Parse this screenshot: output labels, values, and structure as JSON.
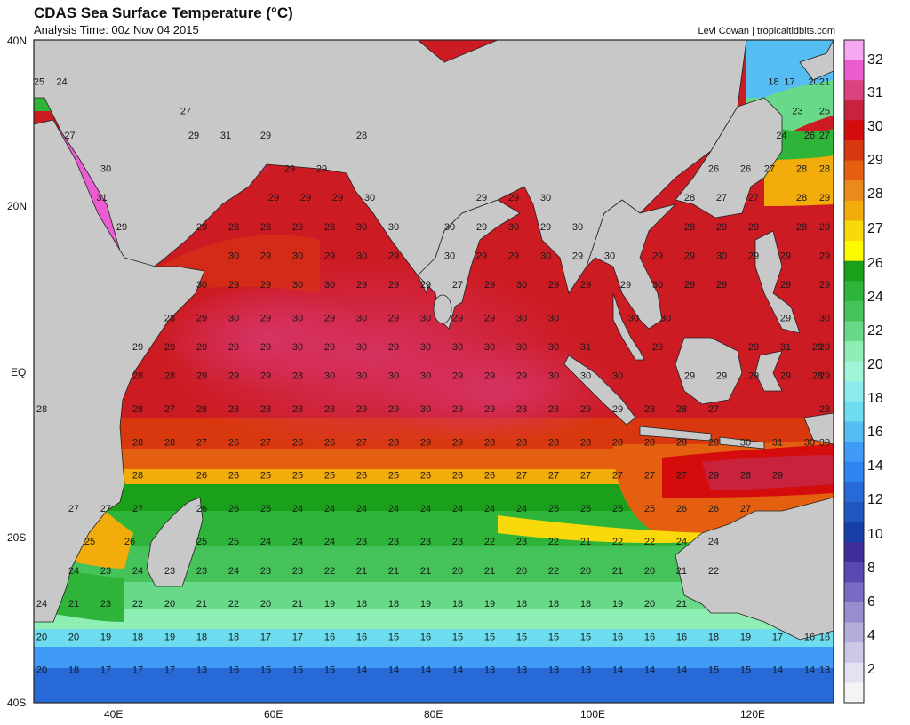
{
  "header": {
    "title": "CDAS Sea Surface Temperature (°C)",
    "analysis_time": "Analysis Time: 00z Nov 04 2015",
    "credit": "Levi Cowan | tropicaltidbits.com"
  },
  "axes": {
    "lat_labels": [
      "40N",
      "20N",
      "EQ",
      "20S",
      "40S"
    ],
    "lon_labels": [
      "40E",
      "60E",
      "80E",
      "100E",
      "120E"
    ]
  },
  "colorbar": {
    "labels": [
      "32",
      "31",
      "30",
      "29",
      "28",
      "27",
      "26",
      "24",
      "22",
      "20",
      "18",
      "16",
      "14",
      "12",
      "10",
      "8",
      "6",
      "4",
      "2"
    ],
    "colors": [
      "#f7a8f2",
      "#ea5ccf",
      "#d9427c",
      "#c8223c",
      "#d40c0c",
      "#d9380e",
      "#e45f10",
      "#eb8a1a",
      "#f2ad0c",
      "#f9d90a",
      "#fdf900",
      "#1aa01a",
      "#2fb43a",
      "#45c25a",
      "#68d988",
      "#8feeb4",
      "#9ff5d6",
      "#8cecec",
      "#6ddcef",
      "#56bdf2",
      "#3f9bf5",
      "#2f84ef",
      "#2769d6",
      "#1f56c0",
      "#173fa8",
      "#3d2e9a",
      "#5948b0",
      "#7a6cc5",
      "#978ed0",
      "#b3addb",
      "#ccc8e6",
      "#e4e1f2",
      "#f4f4f4"
    ]
  },
  "land_color": "#c8c8c8",
  "temp_grid": [
    {
      "lat": 35,
      "values": {
        "30": "25",
        "33.5": "24",
        "122.5": "18",
        "124.5": "17",
        "127.5": "20",
        "130": "21"
      }
    },
    {
      "lat": 31.5,
      "values": {
        "49": "27",
        "125.5": "23",
        "129.5": "25"
      }
    },
    {
      "lat": 28.5,
      "values": {
        "34.5": "27",
        "50": "29",
        "54": "31",
        "59": "29",
        "71": "28",
        "123.5": "24",
        "127": "26",
        "130": "27"
      }
    },
    {
      "lat": 24.5,
      "values": {
        "39": "30",
        "62": "29",
        "66": "29",
        "115": "26",
        "119": "26",
        "122": "27",
        "126": "28",
        "130": "28"
      }
    },
    {
      "lat": 21,
      "values": {
        "38.5": "31",
        "60": "29",
        "64": "29",
        "68": "29",
        "72": "30",
        "86": "29",
        "90": "29",
        "94": "30",
        "112": "28",
        "116": "27",
        "120": "27",
        "126": "28",
        "130": "29"
      }
    },
    {
      "lat": 17.5,
      "values": {
        "41": "29",
        "51": "29",
        "55": "28",
        "59": "28",
        "63": "29",
        "67": "28",
        "71": "30",
        "75": "30",
        "82": "30",
        "86": "29",
        "90": "30",
        "94": "29",
        "98": "30",
        "112": "28",
        "116": "29",
        "120": "29",
        "126": "28",
        "130": "29"
      }
    },
    {
      "lat": 14,
      "values": {
        "55": "30",
        "59": "29",
        "63": "30",
        "67": "29",
        "71": "30",
        "75": "29",
        "82": "30",
        "86": "29",
        "90": "29",
        "94": "30",
        "98": "29",
        "102": "30",
        "108": "29",
        "112": "29",
        "116": "30",
        "120": "29",
        "124": "29",
        "130": "29"
      }
    },
    {
      "lat": 10.5,
      "values": {
        "51": "30",
        "55": "29",
        "59": "29",
        "63": "30",
        "67": "30",
        "71": "29",
        "75": "29",
        "79": "29",
        "83": "27",
        "87": "29",
        "91": "30",
        "95": "29",
        "99": "29",
        "104": "29",
        "108": "30",
        "112": "29",
        "116": "29",
        "124": "29",
        "130": "29"
      }
    },
    {
      "lat": 6.5,
      "values": {
        "47": "28",
        "51": "29",
        "55": "30",
        "59": "29",
        "63": "30",
        "67": "29",
        "71": "30",
        "75": "29",
        "79": "30",
        "83": "29",
        "87": "29",
        "91": "30",
        "95": "30",
        "105": "30",
        "109": "30",
        "124": "29",
        "130": "30"
      }
    },
    {
      "lat": 3,
      "values": {
        "43": "29",
        "47": "29",
        "51": "29",
        "55": "29",
        "59": "29",
        "63": "30",
        "67": "29",
        "71": "30",
        "75": "29",
        "79": "30",
        "83": "30",
        "87": "30",
        "91": "30",
        "95": "30",
        "99": "31",
        "108": "29",
        "120": "29",
        "124": "31",
        "128": "29",
        "130": "29"
      }
    },
    {
      "lat": -0.5,
      "values": {
        "43": "28",
        "47": "28",
        "51": "29",
        "55": "29",
        "59": "29",
        "63": "28",
        "67": "30",
        "71": "30",
        "75": "30",
        "79": "30",
        "83": "29",
        "87": "29",
        "91": "29",
        "95": "30",
        "99": "30",
        "103": "30",
        "112": "29",
        "116": "29",
        "120": "29",
        "124": "29",
        "128": "28",
        "130": "29"
      }
    },
    {
      "lat": -4.5,
      "values": {
        "31": "28",
        "43": "28",
        "47": "27",
        "51": "28",
        "55": "28",
        "59": "28",
        "63": "28",
        "67": "28",
        "71": "29",
        "75": "29",
        "79": "30",
        "83": "29",
        "87": "29",
        "91": "28",
        "95": "28",
        "99": "29",
        "103": "29",
        "107": "28",
        "111": "28",
        "115": "27",
        "130": "28"
      }
    },
    {
      "lat": -8.5,
      "values": {
        "43": "28",
        "47": "28",
        "51": "27",
        "55": "26",
        "59": "27",
        "63": "26",
        "67": "26",
        "71": "27",
        "75": "28",
        "79": "29",
        "83": "29",
        "87": "28",
        "91": "28",
        "95": "28",
        "99": "28",
        "103": "28",
        "107": "28",
        "111": "28",
        "115": "28",
        "119": "30",
        "123": "31",
        "127": "30",
        "130": "30"
      }
    },
    {
      "lat": -12.5,
      "values": {
        "43": "28",
        "51": "26",
        "55": "26",
        "59": "25",
        "63": "25",
        "67": "25",
        "71": "26",
        "75": "25",
        "79": "26",
        "83": "26",
        "87": "26",
        "91": "27",
        "95": "27",
        "99": "27",
        "103": "27",
        "107": "27",
        "111": "27",
        "115": "29",
        "119": "28",
        "123": "29"
      }
    },
    {
      "lat": -16.5,
      "values": {
        "35": "27",
        "39": "27",
        "43": "27",
        "51": "26",
        "55": "26",
        "59": "25",
        "63": "24",
        "67": "24",
        "71": "24",
        "75": "24",
        "79": "24",
        "83": "24",
        "87": "24",
        "91": "24",
        "95": "25",
        "99": "25",
        "103": "25",
        "107": "25",
        "111": "26",
        "115": "26",
        "119": "27"
      }
    },
    {
      "lat": -20.5,
      "values": {
        "37": "25",
        "42": "26",
        "51": "25",
        "55": "25",
        "59": "24",
        "63": "24",
        "67": "24",
        "71": "23",
        "75": "23",
        "79": "23",
        "83": "23",
        "87": "22",
        "91": "23",
        "95": "22",
        "99": "21",
        "103": "22",
        "107": "22",
        "111": "24",
        "115": "24"
      }
    },
    {
      "lat": -24,
      "values": {
        "35": "24",
        "39": "23",
        "43": "24",
        "47": "23",
        "51": "23",
        "55": "24",
        "59": "23",
        "63": "23",
        "67": "22",
        "71": "21",
        "75": "21",
        "79": "21",
        "83": "20",
        "87": "21",
        "91": "20",
        "95": "22",
        "99": "20",
        "103": "21",
        "107": "20",
        "111": "21",
        "115": "22"
      }
    },
    {
      "lat": -28,
      "values": {
        "31": "24",
        "35": "21",
        "39": "23",
        "43": "22",
        "47": "20",
        "51": "21",
        "55": "22",
        "59": "20",
        "63": "21",
        "67": "19",
        "71": "18",
        "75": "18",
        "79": "19",
        "83": "18",
        "87": "19",
        "91": "18",
        "95": "18",
        "99": "18",
        "103": "19",
        "107": "20",
        "111": "21"
      }
    },
    {
      "lat": -32,
      "values": {
        "31": "20",
        "35": "20",
        "39": "19",
        "43": "18",
        "47": "19",
        "51": "18",
        "55": "18",
        "59": "17",
        "63": "17",
        "67": "16",
        "71": "16",
        "75": "15",
        "79": "16",
        "83": "15",
        "87": "15",
        "91": "15",
        "95": "15",
        "99": "15",
        "103": "16",
        "107": "16",
        "111": "16",
        "115": "18",
        "119": "19",
        "123": "17",
        "127": "16",
        "130": "16"
      }
    },
    {
      "lat": -36,
      "values": {
        "31": "20",
        "35": "18",
        "39": "17",
        "43": "17",
        "47": "17",
        "51": "13",
        "55": "16",
        "59": "15",
        "63": "15",
        "67": "15",
        "71": "14",
        "75": "14",
        "79": "14",
        "83": "14",
        "87": "13",
        "91": "13",
        "95": "13",
        "99": "13",
        "103": "14",
        "107": "14",
        "111": "14",
        "115": "15",
        "119": "15",
        "123": "14",
        "127": "14",
        "130": "13"
      }
    }
  ]
}
